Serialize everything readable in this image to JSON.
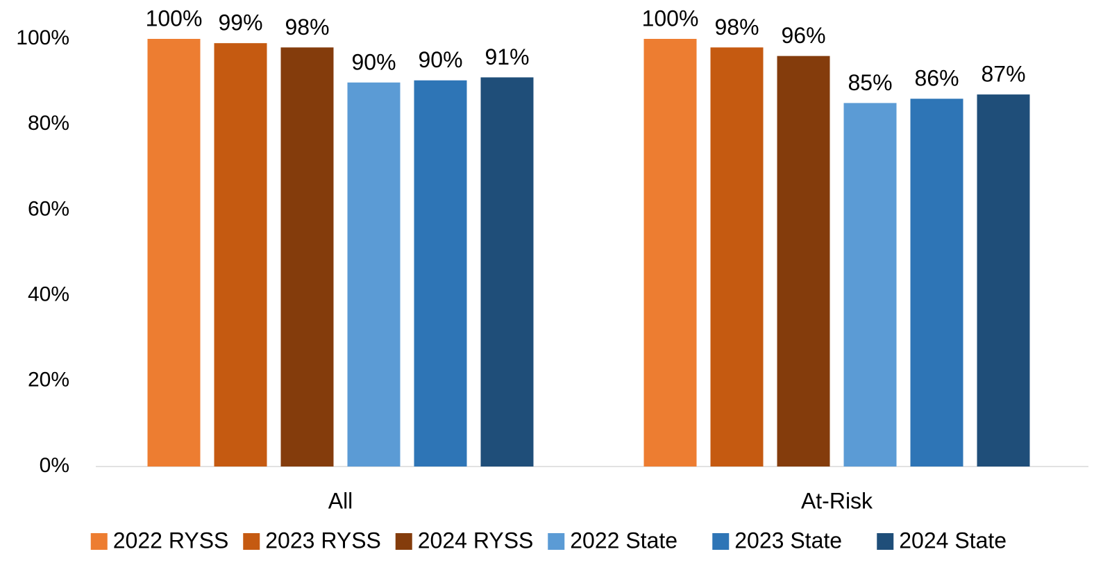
{
  "chart_data": {
    "type": "bar",
    "categories": [
      "All",
      "At-Risk"
    ],
    "series": [
      {
        "name": "2022 RYSS",
        "color": "#ED7D31",
        "values": [
          100,
          100
        ],
        "value_labels": [
          "100%",
          "100%"
        ]
      },
      {
        "name": "2023 RYSS",
        "color": "#C55A11",
        "values": [
          99,
          98
        ],
        "value_labels": [
          "99%",
          "98%"
        ]
      },
      {
        "name": "2024 RYSS",
        "color": "#843C0C",
        "values": [
          98,
          96
        ],
        "value_labels": [
          "98%",
          "96%"
        ]
      },
      {
        "name": "2022 State",
        "color": "#5B9BD5",
        "values": [
          89.8,
          85
        ],
        "value_labels": [
          "90%",
          "85%"
        ]
      },
      {
        "name": "2023 State",
        "color": "#2E75B6",
        "values": [
          90.3,
          86
        ],
        "value_labels": [
          "90%",
          "86%"
        ]
      },
      {
        "name": "2024 State",
        "color": "#1F4E79",
        "values": [
          91,
          87
        ],
        "value_labels": [
          "91%",
          "87%"
        ]
      }
    ],
    "ylim": [
      0,
      100
    ],
    "yticks": [
      {
        "value": 0,
        "label": "0%"
      },
      {
        "value": 20,
        "label": "20%"
      },
      {
        "value": 40,
        "label": "40%"
      },
      {
        "value": 60,
        "label": "60%"
      },
      {
        "value": 80,
        "label": "80%"
      },
      {
        "value": 100,
        "label": "100%"
      }
    ],
    "grid": false,
    "legend": "bottom"
  }
}
